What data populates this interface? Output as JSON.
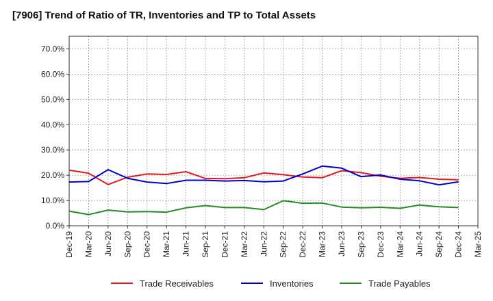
{
  "chart_data": {
    "type": "line",
    "title": "[7906]  Trend of Ratio of TR, Inventories and TP to Total Assets",
    "xlabel": "",
    "ylabel": "",
    "categories": [
      "Dec-19",
      "Mar-20",
      "Jun-20",
      "Sep-20",
      "Dec-20",
      "Mar-21",
      "Jun-21",
      "Sep-21",
      "Dec-21",
      "Mar-22",
      "Jun-22",
      "Sep-22",
      "Dec-22",
      "Mar-23",
      "Jun-23",
      "Sep-23",
      "Dec-23",
      "Mar-24",
      "Jun-24",
      "Sep-24",
      "Dec-24",
      "Mar-25"
    ],
    "ylim": [
      0,
      75
    ],
    "yticks": [
      0,
      10,
      20,
      30,
      40,
      50,
      60,
      70
    ],
    "ytick_labels": [
      "0.0%",
      "10.0%",
      "20.0%",
      "30.0%",
      "40.0%",
      "50.0%",
      "60.0%",
      "70.0%"
    ],
    "grid": true,
    "legend_position": "bottom",
    "series": [
      {
        "name": "Trade Receivables",
        "color": "#e31a1c",
        "values": [
          22.0,
          20.8,
          16.3,
          19.2,
          20.5,
          20.3,
          21.4,
          18.7,
          18.6,
          19.0,
          20.9,
          20.2,
          19.3,
          19.0,
          21.8,
          21.0,
          19.6,
          18.8,
          19.1,
          18.4,
          18.2,
          null
        ]
      },
      {
        "name": "Inventories",
        "color": "#0000cc",
        "values": [
          17.3,
          17.5,
          22.2,
          18.8,
          17.3,
          16.7,
          18.0,
          18.0,
          17.7,
          17.9,
          17.4,
          17.7,
          20.5,
          23.6,
          22.8,
          19.4,
          20.1,
          18.4,
          17.8,
          16.2,
          17.4,
          null
        ]
      },
      {
        "name": "Trade Payables",
        "color": "#228b22",
        "values": [
          5.8,
          4.4,
          6.2,
          5.5,
          5.6,
          5.4,
          7.1,
          8.0,
          7.2,
          7.2,
          6.4,
          9.9,
          8.9,
          9.0,
          7.4,
          7.1,
          7.3,
          6.9,
          8.2,
          7.5,
          7.2,
          null
        ]
      }
    ]
  }
}
